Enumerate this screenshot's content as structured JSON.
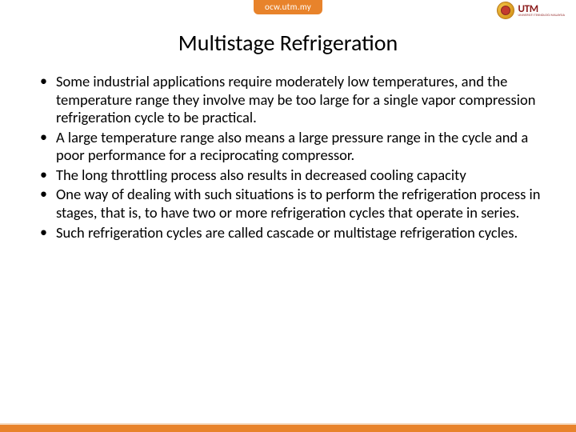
{
  "header": {
    "url": "ocw.utm.my",
    "logo_main": "UTM",
    "logo_sub": "UNIVERSITI TEKNOLOGI MALAYSIA"
  },
  "title": "Multistage Refrigeration",
  "bullets": [
    "Some industrial applications require moderately low temperatures, and the temperature range they involve may be too large for a single vapor compression refrigeration cycle to be practical.",
    "A large temperature range also means a large pressure range in the cycle and a poor performance for a reciprocating compressor.",
    "The long throttling process also results in decreased cooling capacity",
    "One way of dealing with such situations is to perform the refrigeration process in stages, that is, to have two or more refrigeration cycles that operate in series.",
    "Such refrigeration cycles are called cascade or multistage refrigeration cycles."
  ],
  "colors": {
    "accent": "#e8832b",
    "logo_red": "#8b1a1a",
    "text": "#000000",
    "bg": "#ffffff"
  }
}
